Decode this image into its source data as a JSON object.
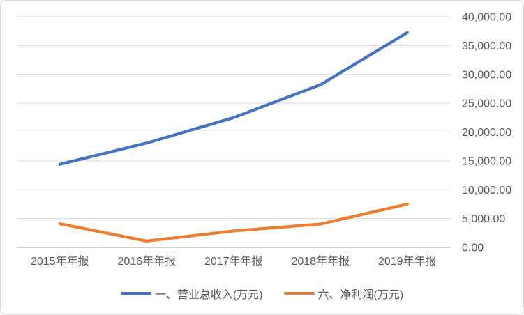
{
  "chart_data": {
    "type": "line",
    "categories": [
      "2015年年报",
      "2016年年报",
      "2017年年报",
      "2018年年报",
      "2019年年报"
    ],
    "series": [
      {
        "name": "一、营业总收入(万元)",
        "color": "#4472C4",
        "values": [
          14400,
          18100,
          22500,
          28200,
          37250
        ]
      },
      {
        "name": "六、净利润(万元)",
        "color": "#ED7D31",
        "values": [
          4100,
          1100,
          2850,
          4050,
          7500
        ]
      }
    ],
    "title": "",
    "xlabel": "",
    "ylabel": "",
    "ylim": [
      0,
      40000
    ],
    "ytick_step": 5000,
    "ytick_labels": [
      "0.00",
      "5,000.00",
      "10,000.00",
      "15,000.00",
      "20,000.00",
      "25,000.00",
      "30,000.00",
      "35,000.00",
      "40,000.00"
    ],
    "y_axis_side": "right",
    "grid": true,
    "legend_position": "bottom"
  },
  "styles": {
    "grid_color": "#D9D9D9",
    "axis_color": "#C0C0C0",
    "text_color": "#595959",
    "background": "#FFFFFF",
    "border_color": "#D9D9D9"
  }
}
